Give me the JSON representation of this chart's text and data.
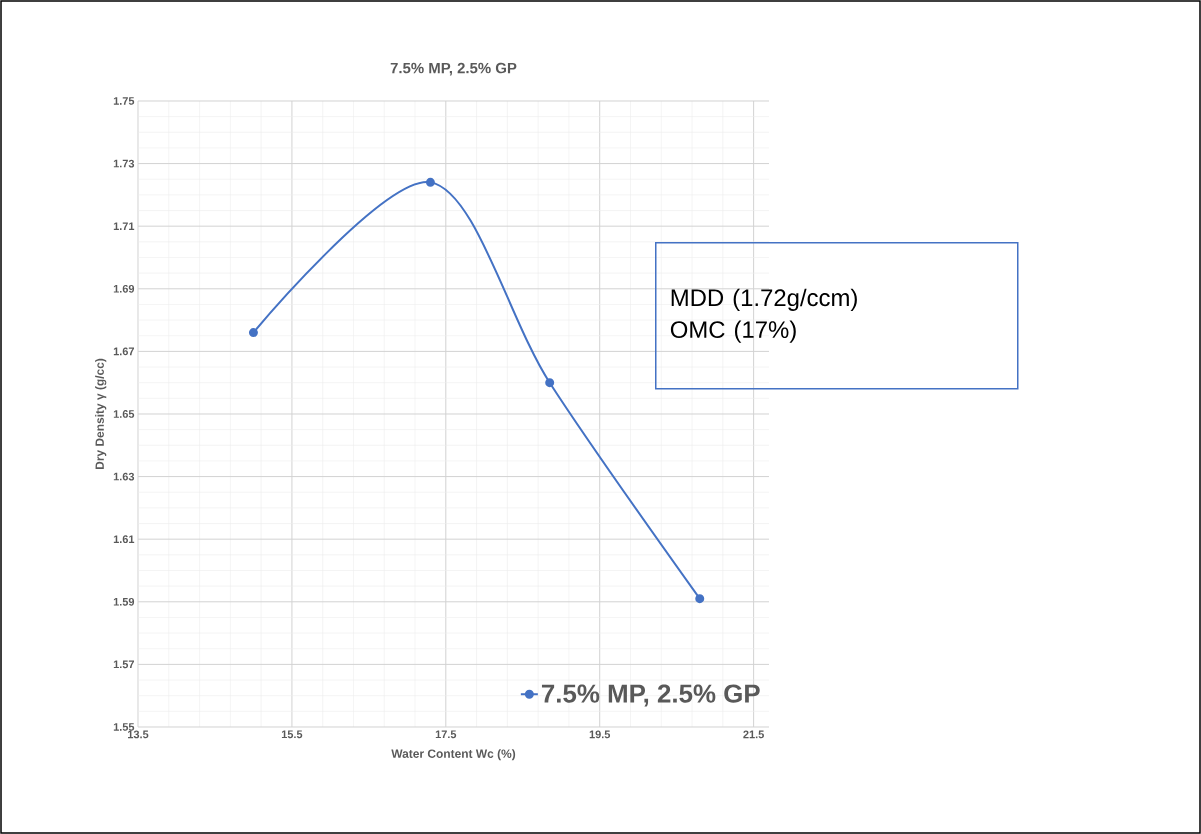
{
  "chart_data": {
    "type": "line",
    "title": "7.5% MP, 2.5% GP",
    "xlabel": "Water Content Wc (%)",
    "ylabel": "Dry Density γ (g/cc)",
    "series": [
      {
        "name": "7.5% MP, 2.5% GP",
        "color": "#4472c4",
        "x": [
          15.0,
          17.3,
          18.85,
          20.8
        ],
        "values": [
          1.676,
          1.724,
          1.66,
          1.591
        ]
      }
    ],
    "xlim": [
      13.5,
      21.7
    ],
    "xticks": [
      13.5,
      15.5,
      17.5,
      19.5,
      21.5
    ],
    "ylim": [
      1.55,
      1.75
    ],
    "yticks": [
      1.55,
      1.57,
      1.59,
      1.61,
      1.63,
      1.65,
      1.67,
      1.69,
      1.71,
      1.73,
      1.75
    ],
    "annotations": [
      "MDD (1.72g/ccm)",
      "OMC (17%)"
    ],
    "grid": true,
    "legend": "bottom right",
    "marker": "circle",
    "line_style": "solid"
  }
}
